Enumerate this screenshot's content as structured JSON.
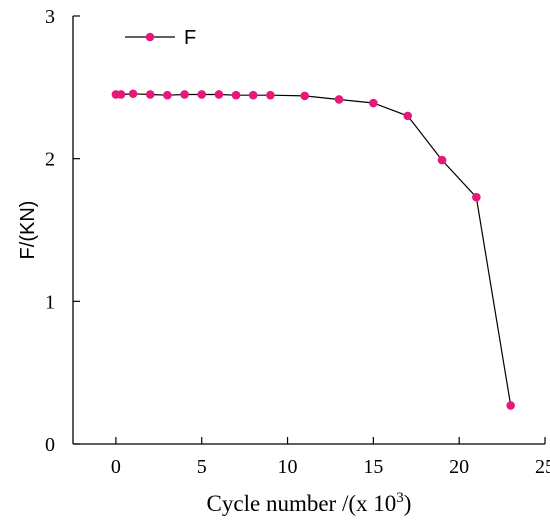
{
  "chart_data": {
    "type": "line",
    "xlabel_main": "Cycle number /(x 10",
    "xlabel_sup": "3",
    "xlabel_close": ")",
    "ylabel": "F/(KN)",
    "xlim": [
      -2.5,
      25
    ],
    "ylim": [
      0,
      3
    ],
    "xticks": [
      0,
      5,
      10,
      15,
      20,
      25
    ],
    "yticks": [
      0,
      1,
      2,
      3
    ],
    "legend_position": "top-left",
    "marker_color": "#e6197a",
    "line_color": "#000000",
    "series": [
      {
        "name": "F",
        "x": [
          0,
          0.3,
          1,
          2,
          3,
          4,
          5,
          6,
          7,
          8,
          9,
          11,
          13,
          15,
          17,
          19,
          21,
          23
        ],
        "y": [
          2.45,
          2.45,
          2.455,
          2.45,
          2.445,
          2.45,
          2.45,
          2.45,
          2.445,
          2.445,
          2.445,
          2.44,
          2.415,
          2.39,
          2.3,
          1.99,
          1.73,
          0.27
        ]
      }
    ]
  }
}
